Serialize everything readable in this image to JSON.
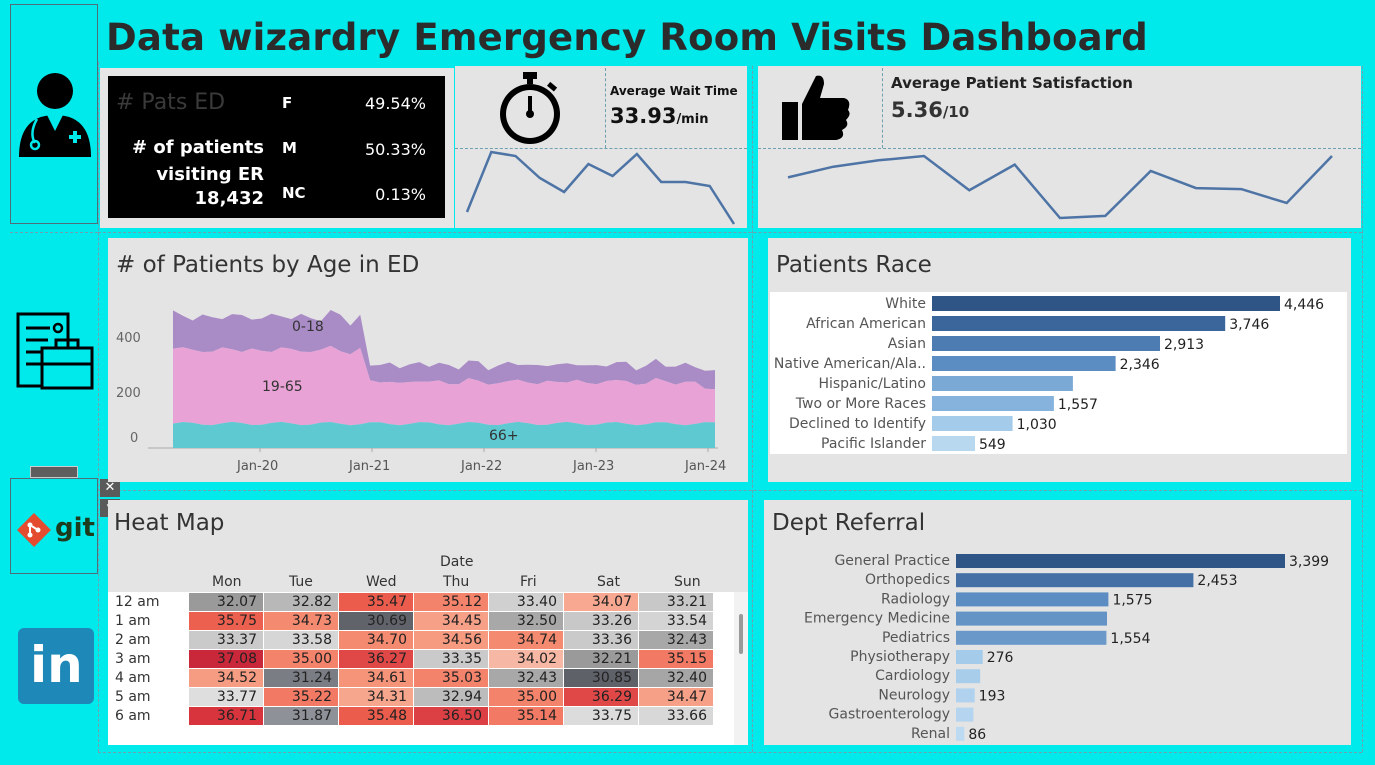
{
  "title": "Data wizardry Emergency Room Visits Dashboard",
  "kpi": {
    "ghost_label": "# Pats ED",
    "patients_label": "# of patients visiting ER",
    "patients_value": "18,432",
    "gender": [
      {
        "label": "F",
        "value": "49.54%"
      },
      {
        "label": "M",
        "value": "50.33%"
      },
      {
        "label": "NC",
        "value": "0.13%"
      }
    ]
  },
  "wait": {
    "label": "Average Wait Time",
    "value": "33.93",
    "unit": "/min",
    "sparkline": [
      22,
      37,
      36,
      30.5,
      27,
      34,
      31,
      36.5,
      29.5,
      29.5,
      28.5,
      19
    ]
  },
  "satisfaction": {
    "label": "Average Patient Satisfaction",
    "value": "5.36",
    "unit": "/10",
    "sparkline": [
      5.4,
      5.9,
      6.2,
      6.4,
      4.8,
      6.0,
      3.5,
      3.6,
      5.7,
      4.9,
      4.85,
      4.2,
      6.4
    ]
  },
  "age_chart": {
    "title": "# of Patients by Age in ED",
    "labels": {
      "young": "0-18",
      "adult": "19-65",
      "senior": "66+"
    },
    "y_ticks": [
      "400",
      "200",
      "0"
    ],
    "x_ticks": [
      "Jan-20",
      "Jan-21",
      "Jan-22",
      "Jan-23",
      "Jan-24"
    ],
    "colors": {
      "young": "#A98BC6",
      "adult": "#E8A2D6",
      "senior": "#5FC9D2"
    }
  },
  "race_chart": {
    "title": "Patients Race",
    "categories": [
      "White",
      "African American",
      "Asian",
      "Native American/Ala..",
      "Hispanic/Latino",
      "Two or More Races",
      "Declined to Identify",
      "Pacific Islander"
    ],
    "values": [
      4446,
      3746,
      2913,
      2346,
      1800,
      1557,
      1030,
      549
    ],
    "labels": [
      "4,446",
      "3,746",
      "2,913",
      "2,346",
      "",
      "1,557",
      "1,030",
      "549"
    ],
    "colors": [
      "#2E5586",
      "#3A669B",
      "#4C7CB2",
      "#5C8DC2",
      "#7BA9D6",
      "#86B3DD",
      "#A5CBEA",
      "#B8D8F0"
    ]
  },
  "heatmap": {
    "title": "Heat Map",
    "header": "Date",
    "days": [
      "Mon",
      "Tue",
      "Wed",
      "Thu",
      "Fri",
      "Sat",
      "Sun"
    ],
    "rows": [
      {
        "hour": "12 am",
        "values": [
          "32.07",
          "32.82",
          "35.47",
          "35.12",
          "33.40",
          "34.07",
          "33.21"
        ],
        "colors": [
          "#9A9A9A",
          "#B8B8B8",
          "#EC5C4C",
          "#F4836C",
          "#D0D0D0",
          "#F8A890",
          "#C8C8C8"
        ]
      },
      {
        "hour": "1 am",
        "values": [
          "35.75",
          "34.73",
          "30.69",
          "34.45",
          "32.50",
          "33.26",
          "33.54"
        ],
        "colors": [
          "#EC6050",
          "#F48A70",
          "#60646A",
          "#F6A088",
          "#A8A8A8",
          "#C8C8C8",
          "#D4D4D4"
        ]
      },
      {
        "hour": "2 am",
        "values": [
          "33.37",
          "33.58",
          "34.70",
          "34.56",
          "34.74",
          "33.36",
          "32.43"
        ],
        "colors": [
          "#CACACA",
          "#D6D6D6",
          "#F48A70",
          "#F69A80",
          "#F48A70",
          "#CACACA",
          "#A8A8A8"
        ]
      },
      {
        "hour": "3 am",
        "values": [
          "37.08",
          "35.00",
          "36.27",
          "33.35",
          "34.02",
          "32.21",
          "35.15"
        ],
        "colors": [
          "#C8283A",
          "#F4836C",
          "#E04848",
          "#CACACA",
          "#F6B8A4",
          "#9A9A9A",
          "#F27A64"
        ]
      },
      {
        "hour": "4 am",
        "values": [
          "34.52",
          "31.24",
          "34.61",
          "35.03",
          "32.43",
          "30.85",
          "32.40"
        ],
        "colors": [
          "#F69C82",
          "#7A7E84",
          "#F6947A",
          "#F4836C",
          "#A8A8A8",
          "#5E6268",
          "#A6A6A6"
        ]
      },
      {
        "hour": "5 am",
        "values": [
          "33.77",
          "35.22",
          "34.31",
          "32.94",
          "35.00",
          "36.29",
          "34.47"
        ],
        "colors": [
          "#DEDEDE",
          "#F27A64",
          "#F6A68C",
          "#BCBCBC",
          "#F4836C",
          "#E04848",
          "#F6A088"
        ]
      },
      {
        "hour": "6 am",
        "values": [
          "36.71",
          "31.87",
          "35.48",
          "36.50",
          "35.14",
          "33.75",
          "33.66"
        ],
        "colors": [
          "#D8343E",
          "#8E9298",
          "#EC5C4C",
          "#DC4044",
          "#F27A64",
          "#DCDCDC",
          "#D8D8D8"
        ]
      }
    ]
  },
  "dept_chart": {
    "title": "Dept Referral",
    "categories": [
      "General Practice",
      "Orthopedics",
      "Radiology",
      "Emergency Medicine",
      "Pediatrics",
      "Physiotherapy",
      "Cardiology",
      "Neurology",
      "Gastroenterology",
      "Renal"
    ],
    "values": [
      3399,
      2453,
      1575,
      1560,
      1554,
      276,
      250,
      193,
      180,
      86
    ],
    "labels": [
      "3,399",
      "2,453",
      "1,575",
      "",
      "1,554",
      "276",
      "",
      "193",
      "",
      "86"
    ],
    "colors": [
      "#2E5586",
      "#4470A6",
      "#5C8DC2",
      "#6494C6",
      "#6A98C8",
      "#A5CBEA",
      "#A8CDEB",
      "#B0D2EE",
      "#B4D4EF",
      "#BCDAF1"
    ]
  },
  "icons": {
    "doctor": "doctor-icon",
    "records": "records-icon",
    "git": "git-icon",
    "linkedin": "linkedin-icon",
    "stopwatch": "stopwatch-icon",
    "thumbs_up": "thumbs-up-icon"
  },
  "git_label": "git",
  "linkedin_label": "in",
  "toolbar": {
    "close": "✕",
    "menu": "▾"
  }
}
